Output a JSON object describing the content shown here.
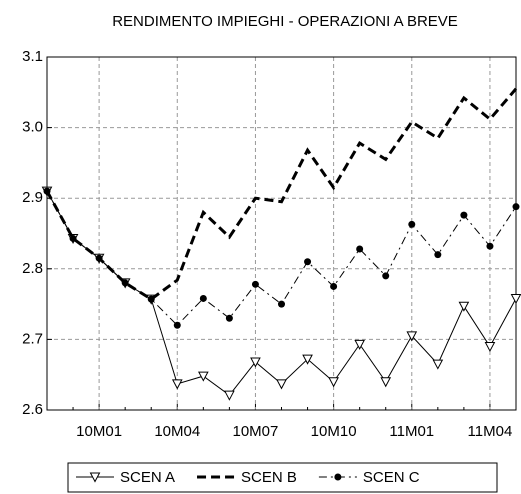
{
  "chart_data": {
    "type": "line",
    "title": "RENDIMENTO IMPIEGHI - OPERAZIONI A BREVE",
    "categories": [
      null,
      null,
      "10M01",
      null,
      null,
      "10M04",
      null,
      null,
      "10M07",
      null,
      null,
      "10M10",
      null,
      null,
      "11M01",
      null,
      null,
      "11M04",
      null
    ],
    "series": [
      {
        "name": "SCEN A",
        "color": "#000000",
        "dash": "solid",
        "marker": "triangle-down",
        "values": [
          2.91,
          2.843,
          2.815,
          2.78,
          2.757,
          2.637,
          2.648,
          2.621,
          2.668,
          2.637,
          2.672,
          2.64,
          2.693,
          2.64,
          2.705,
          2.665,
          2.747,
          2.69,
          2.758
        ]
      },
      {
        "name": "SCEN B",
        "color": "#000000",
        "dash": "dashed",
        "marker": "none",
        "values": [
          2.91,
          2.843,
          2.815,
          2.78,
          2.757,
          2.784,
          2.88,
          2.845,
          2.9,
          2.895,
          2.968,
          2.915,
          2.978,
          2.955,
          3.008,
          2.985,
          3.042,
          3.012,
          3.055
        ]
      },
      {
        "name": "SCEN C",
        "color": "#000000",
        "dash": "dashdot",
        "marker": "circle",
        "values": [
          2.91,
          2.843,
          2.815,
          2.78,
          2.757,
          2.72,
          2.758,
          2.73,
          2.778,
          2.75,
          2.81,
          2.775,
          2.828,
          2.79,
          2.863,
          2.82,
          2.876,
          2.832,
          2.888
        ]
      }
    ],
    "ylim": [
      2.6,
      3.1
    ],
    "yticks": [
      2.6,
      2.7,
      2.8,
      2.9,
      {
        "value": 3,
        "label": "3.0"
      },
      3.1
    ],
    "grid": true,
    "legend": "bottom"
  }
}
